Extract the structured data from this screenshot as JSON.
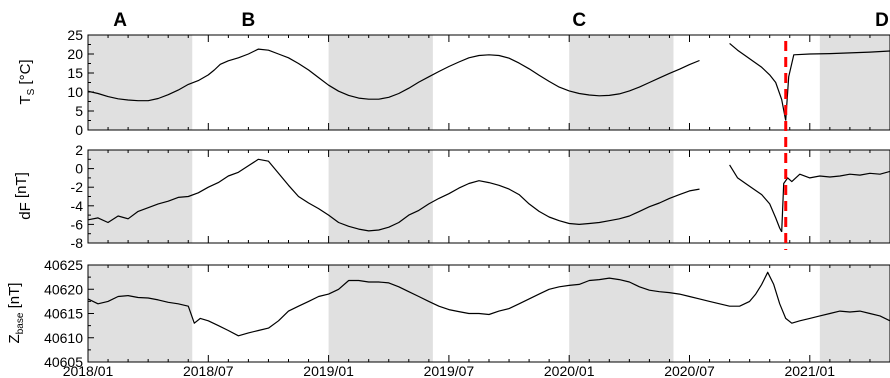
{
  "chart_data": {
    "type": "line",
    "x_tick_labels": [
      "2018/01",
      "2018/07",
      "2019/01",
      "2019/07",
      "2020/01",
      "2020/07",
      "2021/01"
    ],
    "x_ticks_months": [
      0,
      6,
      12,
      18,
      24,
      30,
      36
    ],
    "x_range_months": [
      0,
      40
    ],
    "period_labels": [
      "A",
      "B",
      "C",
      "D"
    ],
    "period_label_months": [
      1.6,
      8.0,
      24.5,
      39.6
    ],
    "shaded_periods": [
      [
        0,
        5.2
      ],
      [
        12,
        17.2
      ],
      [
        24,
        29.2
      ],
      [
        36.5,
        40
      ]
    ],
    "shade_color": "#e0e0e0",
    "event_marker": {
      "month": 34.8,
      "color": "#ff0000",
      "style": "dashed"
    },
    "line_color": "#000000",
    "panels": [
      {
        "ylabel_main": "T",
        "ylabel_sub": "S",
        "ylabel_unit": " [°C]",
        "ylim": [
          0,
          25
        ],
        "yticks": [
          0,
          5,
          10,
          15,
          20,
          25
        ],
        "segments": [
          {
            "x": [
              0,
              0.5,
              1,
              1.5,
              2,
              2.5,
              3,
              3.5,
              4,
              4.5,
              5,
              5.5,
              6,
              6.3,
              6.6,
              7,
              7.5,
              8,
              8.5,
              9,
              9.5,
              10,
              10.5,
              11,
              11.5,
              12,
              12.5,
              13,
              13.5,
              14,
              14.5,
              15,
              15.5,
              16,
              16.5,
              17,
              17.5,
              18,
              18.5,
              19,
              19.5,
              20,
              20.5,
              21,
              21.5,
              22,
              22.5,
              23,
              23.5,
              24,
              24.5,
              25,
              25.5,
              26,
              26.5,
              27,
              27.5,
              28,
              28.5,
              29,
              29.5,
              30,
              30.5
            ],
            "y": [
              10.2,
              9.6,
              8.8,
              8.2,
              7.9,
              7.7,
              7.7,
              8.3,
              9.3,
              10.5,
              12.0,
              13.0,
              14.5,
              15.8,
              17.3,
              18.2,
              19.0,
              20.0,
              21.3,
              21.0,
              20.0,
              19.0,
              17.5,
              15.8,
              13.8,
              11.8,
              10.2,
              9.1,
              8.4,
              8.1,
              8.1,
              8.6,
              9.6,
              11.0,
              12.6,
              14.0,
              15.4,
              16.7,
              17.9,
              19.0,
              19.6,
              19.8,
              19.6,
              18.9,
              17.6,
              16.1,
              14.4,
              12.8,
              11.3,
              10.3,
              9.6,
              9.2,
              9.0,
              9.1,
              9.5,
              10.3,
              11.3,
              12.5,
              13.7,
              14.9,
              16.0,
              17.2,
              18.3
            ]
          },
          {
            "x": [
              32,
              32.4,
              32.8,
              33.2,
              33.6,
              34,
              34.3,
              34.6,
              34.8
            ],
            "y": [
              22.8,
              21.0,
              19.5,
              18.0,
              16.5,
              14.5,
              12.5,
              8.0,
              2.5
            ]
          },
          {
            "x": [
              34.8,
              34.95,
              35.2,
              36,
              37,
              38,
              39,
              40
            ],
            "y": [
              2.5,
              14.0,
              19.8,
              20.0,
              20.1,
              20.3,
              20.5,
              20.8
            ]
          }
        ]
      },
      {
        "ylabel_main": "dF",
        "ylabel_sub": "",
        "ylabel_unit": " [nT]",
        "ylim": [
          -8,
          2
        ],
        "yticks": [
          -8,
          -6,
          -4,
          -2,
          0,
          2
        ],
        "segments": [
          {
            "x": [
              0,
              0.5,
              1,
              1.5,
              2,
              2.5,
              3,
              3.5,
              4,
              4.5,
              5,
              5.5,
              6,
              6.5,
              7,
              7.5,
              8,
              8.5,
              9,
              9.5,
              10,
              10.5,
              11,
              11.5,
              12,
              12.5,
              13,
              13.5,
              14,
              14.5,
              15,
              15.5,
              16,
              16.5,
              17,
              17.5,
              18,
              18.5,
              19,
              19.5,
              20,
              20.5,
              21,
              21.5,
              22,
              22.5,
              23,
              23.5,
              24,
              24.5,
              25,
              25.5,
              26,
              26.5,
              27,
              27.5,
              28,
              28.5,
              29,
              29.5,
              30,
              30.5
            ],
            "y": [
              -5.5,
              -5.3,
              -5.8,
              -5.1,
              -5.4,
              -4.6,
              -4.2,
              -3.8,
              -3.5,
              -3.1,
              -3.0,
              -2.6,
              -2.0,
              -1.5,
              -0.8,
              -0.4,
              0.3,
              1.0,
              0.8,
              -0.5,
              -1.8,
              -3.0,
              -3.7,
              -4.3,
              -5.0,
              -5.8,
              -6.2,
              -6.5,
              -6.7,
              -6.6,
              -6.3,
              -5.8,
              -5.0,
              -4.5,
              -3.8,
              -3.2,
              -2.7,
              -2.1,
              -1.6,
              -1.3,
              -1.5,
              -1.8,
              -2.2,
              -2.8,
              -3.8,
              -4.6,
              -5.2,
              -5.6,
              -5.9,
              -6.0,
              -5.9,
              -5.8,
              -5.6,
              -5.4,
              -5.1,
              -4.6,
              -4.1,
              -3.7,
              -3.2,
              -2.8,
              -2.4,
              -2.2
            ]
          },
          {
            "x": [
              32,
              32.4,
              32.8,
              33.2,
              33.6,
              34,
              34.3,
              34.5,
              34.6
            ],
            "y": [
              0.4,
              -1.0,
              -1.6,
              -2.2,
              -2.8,
              -3.8,
              -5.3,
              -6.4,
              -6.8
            ]
          },
          {
            "x": [
              34.6,
              34.7,
              34.9,
              35.1,
              35.5,
              36,
              36.5,
              37,
              37.5,
              38,
              38.5,
              39,
              39.5,
              40
            ],
            "y": [
              -6.8,
              -1.6,
              -1.0,
              -1.4,
              -0.6,
              -1.0,
              -0.8,
              -0.9,
              -0.8,
              -0.6,
              -0.7,
              -0.5,
              -0.6,
              -0.3
            ]
          }
        ]
      },
      {
        "ylabel_main": "Z",
        "ylabel_sub": "base",
        "ylabel_unit": " [nT]",
        "ylim": [
          40605,
          40625
        ],
        "yticks": [
          40605,
          40610,
          40615,
          40620,
          40625
        ],
        "segments": [
          {
            "x": [
              0,
              0.5,
              1,
              1.5,
              2,
              2.5,
              3,
              3.5,
              4,
              4.5,
              5,
              5.3,
              5.6,
              6,
              6.5,
              7,
              7.5,
              8,
              8.5,
              9,
              9.5,
              10,
              10.5,
              11,
              11.5,
              12,
              12.5,
              13,
              13.5,
              14,
              14.5,
              15,
              15.5,
              16,
              16.5,
              17,
              17.5,
              18,
              18.5,
              19,
              19.5,
              20,
              20.5,
              21,
              21.5,
              22,
              22.5,
              23,
              23.5,
              24,
              24.5,
              25,
              25.5,
              26,
              26.5,
              27,
              27.5,
              28,
              28.5,
              29,
              29.5,
              30,
              30.5,
              31,
              31.5,
              32,
              32.5,
              33,
              33.3,
              33.6,
              33.9,
              34.2,
              34.5,
              34.8,
              35.1,
              35.5,
              36,
              36.5,
              37,
              37.5,
              38,
              38.5,
              39,
              39.5,
              40
            ],
            "y": [
              40618,
              40617,
              40617.5,
              40618.5,
              40618.7,
              40618.3,
              40618.2,
              40617.8,
              40617.3,
              40617,
              40616.5,
              40613,
              40614,
              40613.5,
              40612.5,
              40611.5,
              40610.4,
              40611,
              40611.5,
              40612,
              40613.5,
              40615.5,
              40616.5,
              40617.5,
              40618.5,
              40619,
              40620,
              40621.8,
              40621.8,
              40621.5,
              40621.5,
              40621.3,
              40620.5,
              40619.5,
              40618.5,
              40617.5,
              40616.5,
              40615.8,
              40615.4,
              40615,
              40615,
              40614.8,
              40615.5,
              40616,
              40617,
              40618,
              40619,
              40620,
              40620.5,
              40620.8,
              40621,
              40621.8,
              40622,
              40622.3,
              40622,
              40621.5,
              40620.5,
              40619.8,
              40619.5,
              40619.3,
              40619,
              40618.5,
              40618,
              40617.5,
              40617,
              40616.5,
              40616.5,
              40617.5,
              40619,
              40621,
              40623.5,
              40621,
              40617,
              40614,
              40613,
              40613.5,
              40614,
              40614.5,
              40615,
              40615.5,
              40615.3,
              40615.5,
              40615,
              40614.5,
              40613.5
            ]
          }
        ]
      }
    ]
  }
}
